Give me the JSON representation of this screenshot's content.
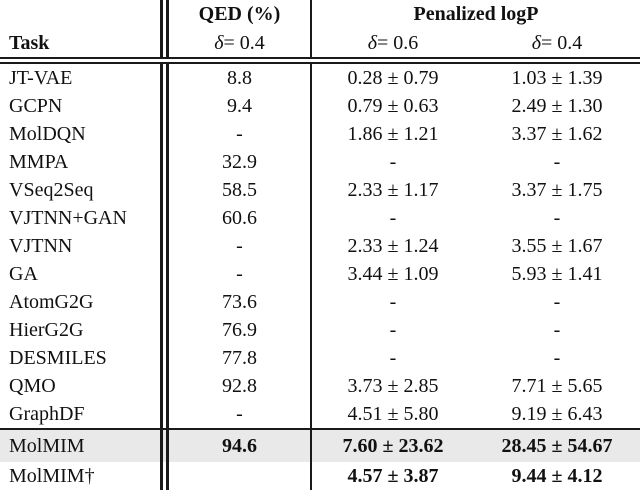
{
  "table": {
    "header": {
      "task": "Task",
      "qed_group": "QED (%)",
      "qed_delta": "δ = 0.4",
      "logp_group": "Penalized logP",
      "logp_delta1": "δ = 0.6",
      "logp_delta2": "δ = 0.4"
    },
    "columns": [
      "Task",
      "QED (%) δ = 0.4",
      "Penalized logP δ = 0.6",
      "Penalized logP δ = 0.4"
    ],
    "rows": [
      {
        "task": "JT-VAE",
        "qed": "8.8",
        "logp06": "0.28 ± 0.79",
        "logp04": "1.03 ± 1.39",
        "bold_values": false,
        "highlight": false
      },
      {
        "task": "GCPN",
        "qed": "9.4",
        "logp06": "0.79 ± 0.63",
        "logp04": "2.49 ± 1.30",
        "bold_values": false,
        "highlight": false
      },
      {
        "task": "MolDQN",
        "qed": "-",
        "logp06": "1.86 ± 1.21",
        "logp04": "3.37 ± 1.62",
        "bold_values": false,
        "highlight": false
      },
      {
        "task": "MMPA",
        "qed": "32.9",
        "logp06": "-",
        "logp04": "-",
        "bold_values": false,
        "highlight": false
      },
      {
        "task": "VSeq2Seq",
        "qed": "58.5",
        "logp06": "2.33 ± 1.17",
        "logp04": "3.37 ± 1.75",
        "bold_values": false,
        "highlight": false
      },
      {
        "task": "VJTNN+GAN",
        "qed": "60.6",
        "logp06": "-",
        "logp04": "-",
        "bold_values": false,
        "highlight": false
      },
      {
        "task": "VJTNN",
        "qed": "-",
        "logp06": "2.33 ± 1.24",
        "logp04": "3.55 ± 1.67",
        "bold_values": false,
        "highlight": false
      },
      {
        "task": "GA",
        "qed": "-",
        "logp06": "3.44 ± 1.09",
        "logp04": "5.93 ± 1.41",
        "bold_values": false,
        "highlight": false
      },
      {
        "task": "AtomG2G",
        "qed": "73.6",
        "logp06": "-",
        "logp04": "-",
        "bold_values": false,
        "highlight": false
      },
      {
        "task": "HierG2G",
        "qed": "76.9",
        "logp06": "-",
        "logp04": "-",
        "bold_values": false,
        "highlight": false
      },
      {
        "task": "DESMILES",
        "qed": "77.8",
        "logp06": "-",
        "logp04": "-",
        "bold_values": false,
        "highlight": false
      },
      {
        "task": "QMO",
        "qed": "92.8",
        "logp06": "3.73 ± 2.85",
        "logp04": "7.71 ± 5.65",
        "bold_values": false,
        "highlight": false
      },
      {
        "task": "GraphDF",
        "qed": "-",
        "logp06": "4.51 ± 5.80",
        "logp04": "9.19 ± 6.43",
        "bold_values": false,
        "highlight": false
      },
      {
        "task": "MolMIM",
        "qed": "94.6",
        "logp06": "7.60 ± 23.62",
        "logp04": "28.45 ± 54.67",
        "bold_values": true,
        "highlight": true
      },
      {
        "task": "MolMIM†",
        "qed": "",
        "logp06": "4.57 ± 3.87",
        "logp04": "9.44 ± 4.12",
        "bold_values": true,
        "highlight": false
      }
    ],
    "colors": {
      "highlight_row_bg": "#e9e9e9",
      "rule_color": "#1a1a1a",
      "text_color": "#111111",
      "page_bg": "#ffffff"
    }
  }
}
